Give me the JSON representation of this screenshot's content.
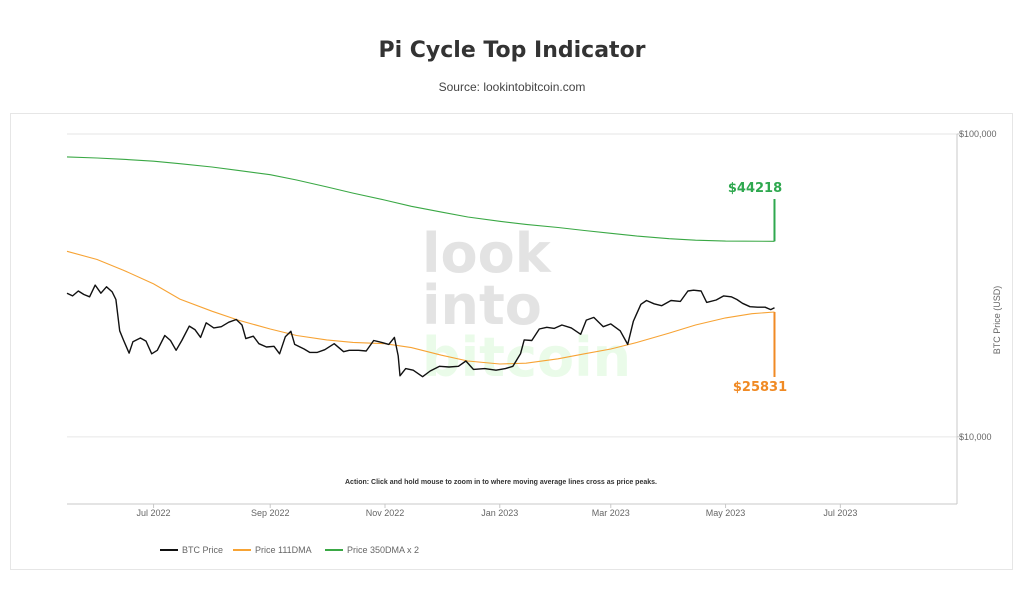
{
  "header": {
    "title": "Pi Cycle Top Indicator",
    "subtitle": "Source: lookintobitcoin.com"
  },
  "watermark": [
    "look",
    "into",
    "bitcoin"
  ],
  "annotations": {
    "action_text": "Action: Click and hold mouse to zoom in to where moving average lines cross as price peaks.",
    "upper_value": "$44218",
    "lower_value": "$25831"
  },
  "colors": {
    "btc": "#111111",
    "ma111": "#f7a334",
    "ma350": "#3aa845",
    "upper_label": "#2fa84f",
    "lower_label": "#f08a24"
  },
  "chart_data": {
    "type": "line",
    "title": "Pi Cycle Top Indicator",
    "subtitle": "Source: lookintobitcoin.com",
    "ylabel": "BTC Price (USD)",
    "yscale": "log",
    "ylim": [
      6000,
      100000
    ],
    "xlim": [
      "2022-05-16",
      "2023-09-01"
    ],
    "x_ticks": [
      {
        "date": "2022-07-01",
        "label": "Jul 2022"
      },
      {
        "date": "2022-09-01",
        "label": "Sep 2022"
      },
      {
        "date": "2022-11-01",
        "label": "Nov 2022"
      },
      {
        "date": "2023-01-01",
        "label": "Jan 2023"
      },
      {
        "date": "2023-03-01",
        "label": "Mar 2023"
      },
      {
        "date": "2023-05-01",
        "label": "May 2023"
      },
      {
        "date": "2023-07-01",
        "label": "Jul 2023"
      }
    ],
    "y_ticks": [
      {
        "value": 100000,
        "label": "$100,000"
      },
      {
        "value": 10000,
        "label": "$10,000"
      }
    ],
    "legend_position": "bottom-left",
    "series": [
      {
        "name": "BTC Price",
        "points": [
          [
            "2022-05-16",
            29800
          ],
          [
            "2022-05-19",
            29200
          ],
          [
            "2022-05-22",
            30300
          ],
          [
            "2022-05-25",
            29500
          ],
          [
            "2022-05-28",
            29000
          ],
          [
            "2022-05-31",
            31700
          ],
          [
            "2022-06-03",
            29800
          ],
          [
            "2022-06-06",
            31300
          ],
          [
            "2022-06-09",
            30100
          ],
          [
            "2022-06-11",
            28400
          ],
          [
            "2022-06-13",
            22400
          ],
          [
            "2022-06-15",
            20900
          ],
          [
            "2022-06-18",
            18900
          ],
          [
            "2022-06-20",
            20600
          ],
          [
            "2022-06-24",
            21200
          ],
          [
            "2022-06-27",
            20700
          ],
          [
            "2022-06-30",
            18800
          ],
          [
            "2022-07-03",
            19300
          ],
          [
            "2022-07-07",
            21600
          ],
          [
            "2022-07-10",
            20800
          ],
          [
            "2022-07-13",
            19300
          ],
          [
            "2022-07-16",
            20800
          ],
          [
            "2022-07-20",
            23200
          ],
          [
            "2022-07-23",
            22600
          ],
          [
            "2022-07-26",
            21300
          ],
          [
            "2022-07-29",
            23800
          ],
          [
            "2022-08-02",
            22900
          ],
          [
            "2022-08-06",
            23100
          ],
          [
            "2022-08-10",
            23900
          ],
          [
            "2022-08-14",
            24400
          ],
          [
            "2022-08-17",
            23400
          ],
          [
            "2022-08-19",
            21100
          ],
          [
            "2022-08-23",
            21500
          ],
          [
            "2022-08-26",
            20300
          ],
          [
            "2022-08-30",
            19800
          ],
          [
            "2022-09-03",
            19900
          ],
          [
            "2022-09-06",
            18800
          ],
          [
            "2022-09-09",
            21400
          ],
          [
            "2022-09-12",
            22300
          ],
          [
            "2022-09-14",
            20200
          ],
          [
            "2022-09-19",
            19500
          ],
          [
            "2022-09-22",
            19000
          ],
          [
            "2022-09-26",
            19000
          ],
          [
            "2022-09-30",
            19400
          ],
          [
            "2022-10-05",
            20300
          ],
          [
            "2022-10-10",
            19100
          ],
          [
            "2022-10-13",
            19300
          ],
          [
            "2022-10-18",
            19300
          ],
          [
            "2022-10-22",
            19200
          ],
          [
            "2022-10-26",
            20800
          ],
          [
            "2022-10-29",
            20600
          ],
          [
            "2022-11-03",
            20200
          ],
          [
            "2022-11-06",
            21300
          ],
          [
            "2022-11-08",
            18500
          ],
          [
            "2022-11-09",
            15900
          ],
          [
            "2022-11-12",
            16800
          ],
          [
            "2022-11-16",
            16600
          ],
          [
            "2022-11-21",
            15800
          ],
          [
            "2022-11-25",
            16500
          ],
          [
            "2022-11-30",
            17100
          ],
          [
            "2022-12-05",
            17000
          ],
          [
            "2022-12-10",
            17100
          ],
          [
            "2022-12-14",
            17800
          ],
          [
            "2022-12-18",
            16700
          ],
          [
            "2022-12-24",
            16800
          ],
          [
            "2022-12-30",
            16600
          ],
          [
            "2023-01-04",
            16800
          ],
          [
            "2023-01-08",
            17100
          ],
          [
            "2023-01-12",
            18800
          ],
          [
            "2023-01-14",
            20900
          ],
          [
            "2023-01-18",
            20800
          ],
          [
            "2023-01-22",
            22700
          ],
          [
            "2023-01-26",
            23000
          ],
          [
            "2023-01-30",
            22800
          ],
          [
            "2023-02-03",
            23400
          ],
          [
            "2023-02-08",
            22900
          ],
          [
            "2023-02-13",
            21800
          ],
          [
            "2023-02-16",
            24300
          ],
          [
            "2023-02-20",
            24800
          ],
          [
            "2023-02-25",
            23100
          ],
          [
            "2023-03-01",
            23600
          ],
          [
            "2023-03-06",
            22400
          ],
          [
            "2023-03-10",
            20200
          ],
          [
            "2023-03-13",
            24100
          ],
          [
            "2023-03-17",
            27400
          ],
          [
            "2023-03-20",
            28200
          ],
          [
            "2023-03-24",
            27500
          ],
          [
            "2023-03-28",
            27100
          ],
          [
            "2023-04-02",
            28200
          ],
          [
            "2023-04-07",
            28000
          ],
          [
            "2023-04-11",
            30300
          ],
          [
            "2023-04-14",
            30500
          ],
          [
            "2023-04-18",
            30300
          ],
          [
            "2023-04-21",
            27800
          ],
          [
            "2023-04-26",
            28300
          ],
          [
            "2023-04-30",
            29200
          ],
          [
            "2023-05-04",
            29000
          ],
          [
            "2023-05-07",
            28400
          ],
          [
            "2023-05-10",
            27600
          ],
          [
            "2023-05-14",
            26900
          ],
          [
            "2023-05-18",
            26800
          ],
          [
            "2023-05-22",
            26800
          ],
          [
            "2023-05-25",
            26300
          ],
          [
            "2023-05-27",
            26700
          ]
        ]
      },
      {
        "name": "Price 111DMA",
        "points": [
          [
            "2022-05-16",
            41000
          ],
          [
            "2022-06-01",
            38500
          ],
          [
            "2022-06-15",
            35500
          ],
          [
            "2022-07-01",
            32000
          ],
          [
            "2022-07-15",
            28500
          ],
          [
            "2022-08-01",
            26000
          ],
          [
            "2022-08-15",
            24300
          ],
          [
            "2022-09-01",
            22700
          ],
          [
            "2022-09-15",
            21600
          ],
          [
            "2022-10-01",
            20900
          ],
          [
            "2022-10-15",
            20500
          ],
          [
            "2022-11-01",
            20300
          ],
          [
            "2022-11-15",
            19700
          ],
          [
            "2022-12-01",
            18600
          ],
          [
            "2022-12-15",
            17800
          ],
          [
            "2023-01-01",
            17400
          ],
          [
            "2023-01-15",
            17500
          ],
          [
            "2023-02-01",
            18100
          ],
          [
            "2023-02-15",
            18800
          ],
          [
            "2023-03-01",
            19500
          ],
          [
            "2023-03-15",
            20500
          ],
          [
            "2023-04-01",
            22000
          ],
          [
            "2023-04-15",
            23400
          ],
          [
            "2023-05-01",
            24700
          ],
          [
            "2023-05-15",
            25500
          ],
          [
            "2023-05-27",
            25831
          ]
        ]
      },
      {
        "name": "Price 350DMA x 2",
        "points": [
          [
            "2022-05-16",
            84000
          ],
          [
            "2022-06-01",
            83300
          ],
          [
            "2022-06-15",
            82500
          ],
          [
            "2022-07-01",
            81300
          ],
          [
            "2022-07-15",
            79800
          ],
          [
            "2022-08-01",
            77800
          ],
          [
            "2022-08-15",
            75800
          ],
          [
            "2022-09-01",
            73400
          ],
          [
            "2022-09-15",
            70500
          ],
          [
            "2022-10-01",
            66900
          ],
          [
            "2022-10-15",
            63800
          ],
          [
            "2022-11-01",
            60500
          ],
          [
            "2022-11-15",
            57700
          ],
          [
            "2022-12-01",
            55200
          ],
          [
            "2022-12-15",
            53200
          ],
          [
            "2023-01-01",
            51500
          ],
          [
            "2023-01-15",
            50300
          ],
          [
            "2023-02-01",
            49100
          ],
          [
            "2023-02-15",
            48000
          ],
          [
            "2023-03-01",
            47000
          ],
          [
            "2023-03-15",
            46000
          ],
          [
            "2023-04-01",
            45100
          ],
          [
            "2023-04-15",
            44600
          ],
          [
            "2023-05-01",
            44300
          ],
          [
            "2023-05-27",
            44218
          ]
        ]
      }
    ]
  }
}
